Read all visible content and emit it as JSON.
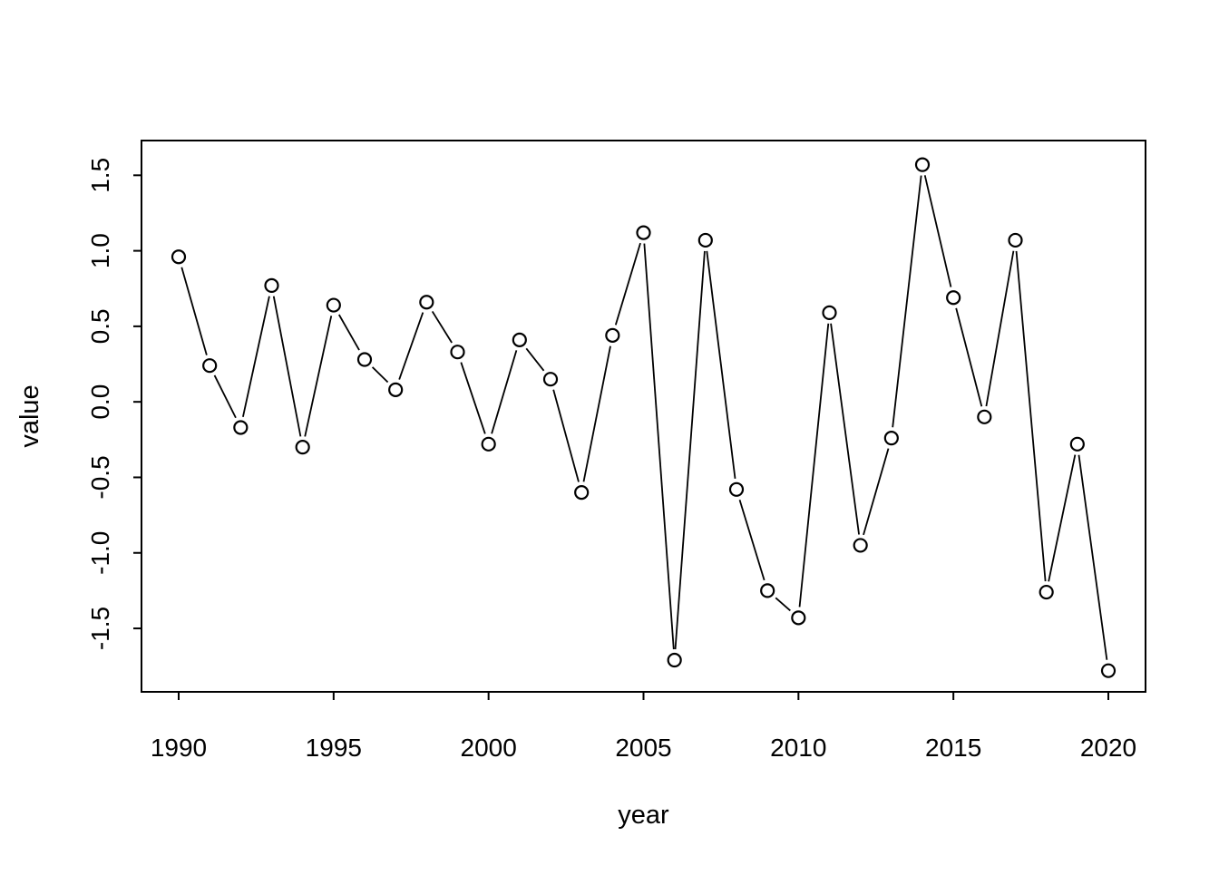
{
  "chart_data": {
    "type": "line",
    "title": "",
    "xlabel": "year",
    "ylabel": "value",
    "marker": "open-circle",
    "line_style": "solid-with-point-gaps",
    "grid": false,
    "legend_position": "none",
    "background_color": "#ffffff",
    "line_color": "#000000",
    "marker_color": "#000000",
    "x": [
      1990,
      1991,
      1992,
      1993,
      1994,
      1995,
      1996,
      1997,
      1998,
      1999,
      2000,
      2001,
      2002,
      2003,
      2004,
      2005,
      2006,
      2007,
      2008,
      2009,
      2010,
      2011,
      2012,
      2013,
      2014,
      2015,
      2016,
      2017,
      2018,
      2019,
      2020
    ],
    "values": [
      0.96,
      0.24,
      -0.17,
      0.77,
      -0.3,
      0.64,
      0.28,
      0.08,
      0.66,
      0.33,
      -0.28,
      0.41,
      0.15,
      -0.6,
      0.44,
      1.12,
      -1.71,
      1.07,
      -0.58,
      -1.25,
      -1.43,
      0.59,
      -0.95,
      -0.24,
      1.57,
      0.69,
      -0.1,
      1.07,
      -1.26,
      -0.28,
      -1.78
    ],
    "xticks": [
      1990,
      1995,
      2000,
      2005,
      2010,
      2015,
      2020
    ],
    "ytick_labels": [
      "1.5",
      "1.0",
      "0.5",
      "0.0",
      "-0.5",
      "-1.0",
      "-1.5"
    ],
    "yticks": [
      1.5,
      1.0,
      0.5,
      0.0,
      -0.5,
      -1.0,
      -1.5
    ],
    "xlim": [
      1988.8,
      2021.2
    ],
    "ylim": [
      -1.92,
      1.73
    ]
  }
}
